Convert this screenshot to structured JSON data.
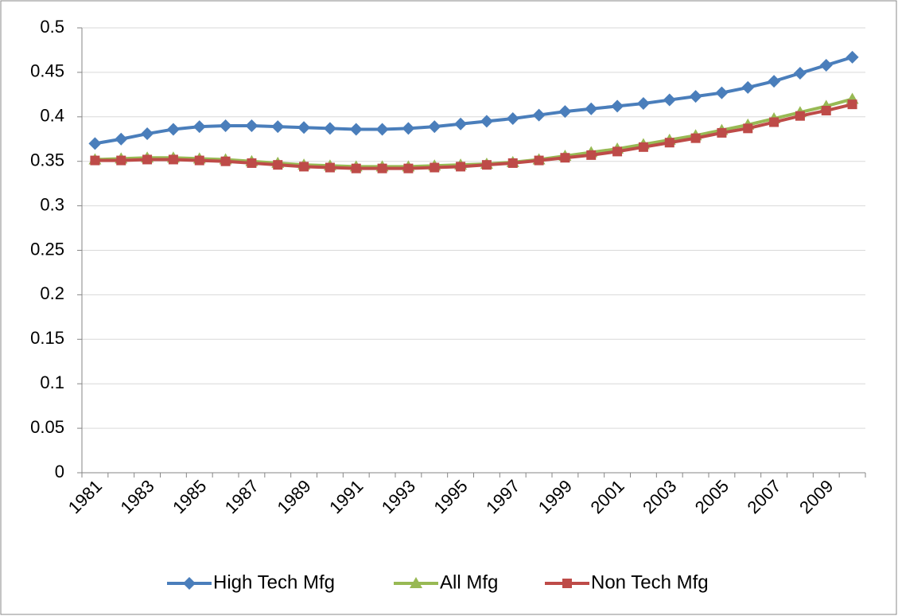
{
  "chart_data": {
    "type": "line",
    "categories": [
      "1981",
      null,
      "1983",
      null,
      "1985",
      null,
      "1987",
      null,
      "1989",
      null,
      "1991",
      null,
      "1993",
      null,
      "1995",
      null,
      "1997",
      null,
      "1999",
      null,
      "2001",
      null,
      "2003",
      null,
      "2005",
      null,
      "2007",
      null,
      "2009",
      null
    ],
    "series": [
      {
        "name": "High Tech Mfg",
        "color": "#4a7ebb",
        "marker": "diamond",
        "values": [
          0.37,
          0.375,
          0.381,
          0.386,
          0.389,
          0.39,
          0.39,
          0.389,
          0.388,
          0.387,
          0.386,
          0.386,
          0.387,
          0.389,
          0.392,
          0.395,
          0.398,
          0.402,
          0.406,
          0.409,
          0.412,
          0.415,
          0.419,
          0.423,
          0.427,
          0.433,
          0.44,
          0.449,
          0.458,
          0.467
        ]
      },
      {
        "name": "All Mfg",
        "color": "#98b954",
        "marker": "triangle",
        "values": [
          0.352,
          0.353,
          0.354,
          0.354,
          0.353,
          0.352,
          0.35,
          0.348,
          0.346,
          0.345,
          0.344,
          0.344,
          0.344,
          0.345,
          0.346,
          0.347,
          0.349,
          0.352,
          0.356,
          0.36,
          0.364,
          0.369,
          0.374,
          0.379,
          0.385,
          0.391,
          0.398,
          0.405,
          0.412,
          0.42
        ]
      },
      {
        "name": "Non Tech Mfg",
        "color": "#be4b48",
        "marker": "square",
        "values": [
          0.351,
          0.351,
          0.352,
          0.352,
          0.351,
          0.35,
          0.348,
          0.346,
          0.344,
          0.343,
          0.342,
          0.342,
          0.342,
          0.343,
          0.344,
          0.346,
          0.348,
          0.351,
          0.354,
          0.357,
          0.361,
          0.366,
          0.371,
          0.376,
          0.382,
          0.387,
          0.394,
          0.401,
          0.407,
          0.414
        ]
      }
    ],
    "ylim": [
      0,
      0.5
    ],
    "yticks": [
      0,
      0.05,
      0.1,
      0.15,
      0.2,
      0.25,
      0.3,
      0.35,
      0.4,
      0.45,
      0.5
    ],
    "grid": true,
    "legend": "bottom"
  }
}
